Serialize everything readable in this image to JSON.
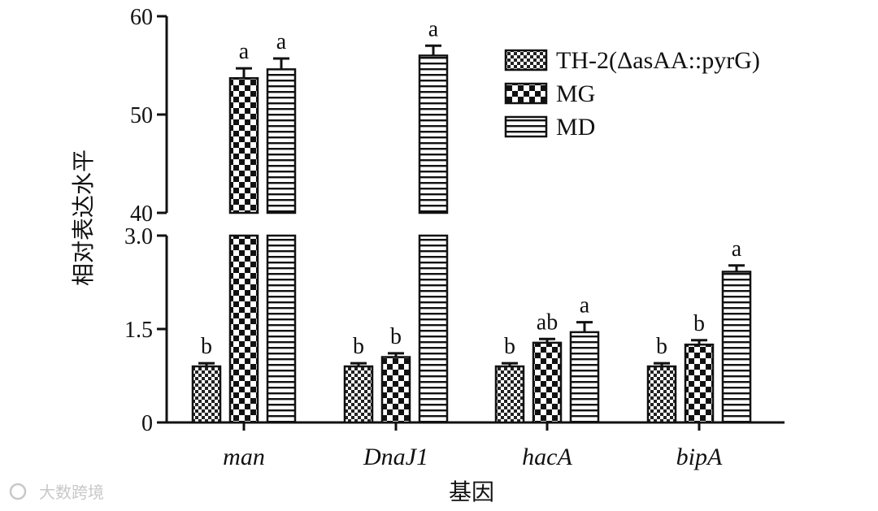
{
  "chart_data": {
    "type": "bar",
    "title": "",
    "xlabel": "基因",
    "ylabel": "相对表达水平",
    "categories": [
      "man",
      "DnaJ1",
      "hacA",
      "bipA"
    ],
    "series": [
      {
        "name": "TH-2(ΔasAA::pyrG)",
        "pattern": "checker-small",
        "values": [
          0.9,
          0.9,
          0.9,
          0.9
        ],
        "errors": [
          0.05,
          0.05,
          0.05,
          0.05
        ],
        "labels": [
          "b",
          "b",
          "b",
          "b"
        ]
      },
      {
        "name": "MG",
        "pattern": "checker-large",
        "values": [
          53.7,
          1.05,
          1.28,
          1.25
        ],
        "errors": [
          1.0,
          0.06,
          0.06,
          0.07
        ],
        "labels": [
          "a",
          "b",
          "ab",
          "b"
        ]
      },
      {
        "name": "MD",
        "pattern": "horizontal-stripes",
        "values": [
          54.6,
          56.0,
          1.45,
          2.42
        ],
        "errors": [
          1.1,
          1.0,
          0.16,
          0.1
        ],
        "labels": [
          "a",
          "a",
          "a",
          "a"
        ]
      }
    ],
    "axis_break": {
      "lower": {
        "ylim": [
          0,
          3.0
        ],
        "ticks": [
          "0",
          "1.5",
          "3.0"
        ]
      },
      "upper": {
        "ylim": [
          40,
          60
        ],
        "ticks": [
          "40",
          "50",
          "60"
        ]
      }
    },
    "legend_position": "top-right",
    "grid": false
  },
  "watermark": {
    "text": "大数跨境",
    "icon": "weibo-icon"
  }
}
